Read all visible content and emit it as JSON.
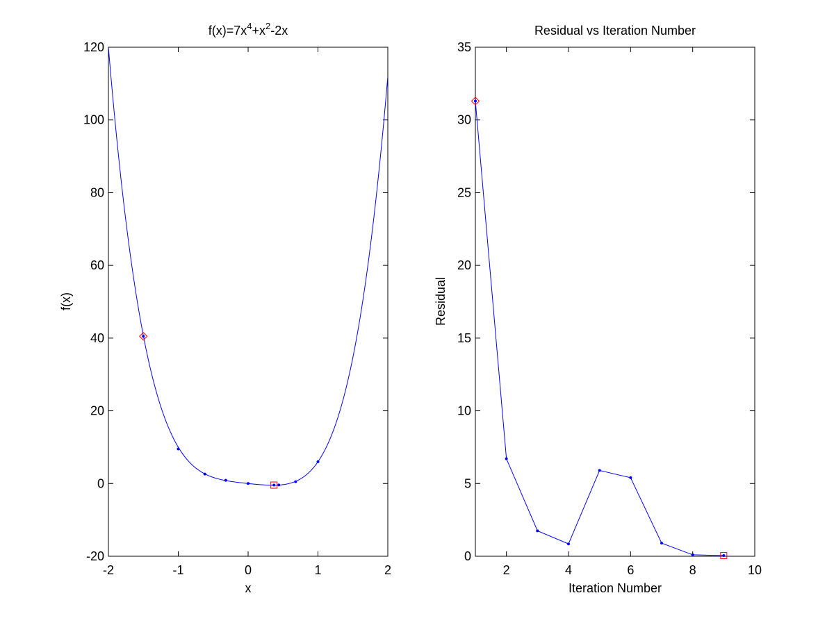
{
  "chart_data": [
    {
      "type": "line",
      "title": {
        "base": "f(x)=7x",
        "sup1": "4",
        "mid": "+x",
        "sup2": "2",
        "tail": "-2x"
      },
      "xlabel": "x",
      "ylabel": "f(x)",
      "xlim": [
        -2,
        2
      ],
      "ylim": [
        -20,
        120
      ],
      "xticks": [
        "-2",
        "-1",
        "0",
        "1",
        "2"
      ],
      "yticks": [
        "-20",
        "0",
        "20",
        "40",
        "60",
        "80",
        "100",
        "120"
      ],
      "curve": {
        "expression": "7x^4+x^2-2x",
        "x_range": [
          -2,
          2
        ],
        "color": "#0000ff"
      },
      "series": [
        {
          "x": [
            -1.5,
            -1.0,
            -0.62,
            -0.32,
            0.0,
            0.37,
            0.44,
            0.68,
            1.0
          ],
          "y": [
            40.5,
            9.5,
            2.6,
            0.9,
            0.0,
            -0.43,
            -0.4,
            0.5,
            6.0
          ],
          "color": "#0000ff"
        }
      ],
      "start_marker": {
        "x": -1.5,
        "y": 40.5,
        "shape": "diamond",
        "color": "#ff0000"
      },
      "end_marker": {
        "x": 0.37,
        "y": -0.43,
        "shape": "square",
        "color": "#ff0000"
      },
      "grid": false
    },
    {
      "type": "line",
      "title": "Residual vs Iteration Number",
      "xlabel": "Iteration Number",
      "ylabel": "Residual",
      "xlim": [
        1,
        10
      ],
      "ylim": [
        0,
        35
      ],
      "xticks": [
        "2",
        "4",
        "6",
        "8",
        "10"
      ],
      "yticks": [
        "0",
        "5",
        "10",
        "15",
        "20",
        "25",
        "30",
        "35"
      ],
      "series": [
        {
          "x": [
            1,
            2,
            3,
            4,
            5,
            6,
            7,
            8,
            9
          ],
          "y": [
            31.3,
            6.7,
            1.75,
            0.85,
            5.9,
            5.4,
            0.9,
            0.1,
            0.05
          ],
          "color": "#0000ff"
        }
      ],
      "start_marker": {
        "x": 1,
        "y": 31.3,
        "shape": "diamond",
        "color": "#ff0000"
      },
      "end_marker": {
        "x": 9,
        "y": 0.05,
        "shape": "square",
        "color": "#ff0000"
      },
      "grid": false
    }
  ]
}
